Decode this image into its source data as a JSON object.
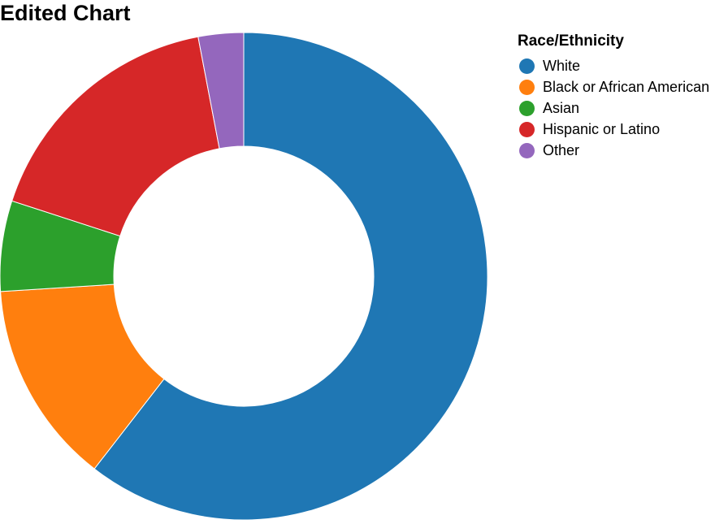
{
  "chart_data": {
    "type": "pie",
    "title": "Edited Chart",
    "legend_title": "Race/Ethnicity",
    "legend_placement": "top-right",
    "categories": [
      "White",
      "Black or African American",
      "Asian",
      "Hispanic or Latino",
      "Other"
    ],
    "values": [
      60.5,
      13.5,
      6.0,
      17.0,
      3.0
    ],
    "colors": [
      "#1f77b4",
      "#ff7f0e",
      "#2ca02c",
      "#d62728",
      "#9467bd"
    ]
  }
}
